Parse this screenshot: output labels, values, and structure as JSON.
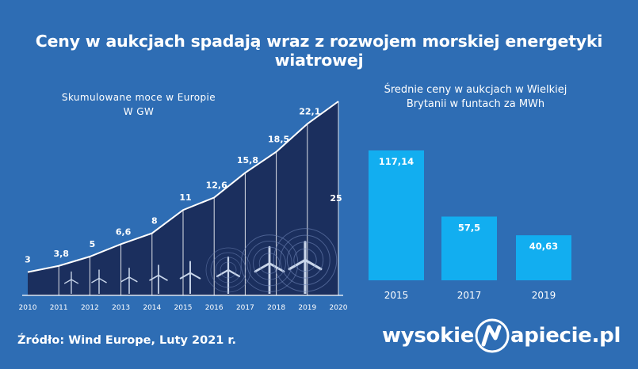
{
  "title": "Ceny w aukcjach spadają wraz z rozwojem morskiej energetyki wiatrowej",
  "source": "Źródło: Wind Europe, Luty 2021 r.",
  "logo": {
    "left": "wysokie",
    "right": "apiecie.pl",
    "badge_letter": "N"
  },
  "colors": {
    "background": "#2e6db4",
    "area_fill": "#1b2f5e",
    "bar_fill": "#12aef0",
    "text": "#ffffff"
  },
  "chart_data": [
    {
      "type": "area",
      "title": "Skumulowane moce w Europie",
      "subtitle": "W GW",
      "x": [
        "2010",
        "2011",
        "2012",
        "2013",
        "2014",
        "2015",
        "2016",
        "2017",
        "2018",
        "2019",
        "2020"
      ],
      "values": [
        3,
        3.8,
        5,
        6.6,
        8,
        11,
        12.6,
        15.8,
        18.5,
        22.1,
        25
      ],
      "value_labels": [
        "3",
        "3,8",
        "5",
        "6,6",
        "8",
        "11",
        "12,6",
        "15,8",
        "18,5",
        "22,1",
        "25"
      ],
      "ylim": [
        0,
        25
      ],
      "grid": false,
      "decoration": "wind-turbines"
    },
    {
      "type": "bar",
      "title": "Średnie ceny w aukcjach w Wielkiej Brytanii w funtach za MWh",
      "categories": [
        "2015",
        "2017",
        "2019"
      ],
      "values": [
        117.14,
        57.5,
        40.63
      ],
      "value_labels": [
        "117,14",
        "57,5",
        "40,63"
      ],
      "ylim": [
        0,
        117.14
      ],
      "grid": false
    }
  ]
}
